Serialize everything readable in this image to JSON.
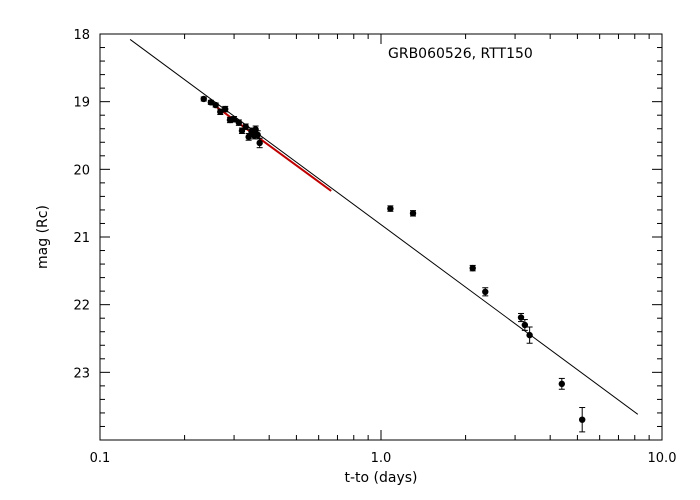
{
  "chart_data": {
    "type": "scatter",
    "title": "GRB060526, RTT150",
    "xlabel": "t-to (days)",
    "ylabel": "mag (Rc)",
    "x_scale": "log",
    "xlim": [
      0.1,
      10.0
    ],
    "ylim": [
      24.0,
      18.0
    ],
    "y_inverted": true,
    "x_ticks": [
      0.1,
      1.0,
      10.0
    ],
    "x_tick_labels": [
      "0.1",
      "1.0",
      "10.0"
    ],
    "y_ticks": [
      18,
      19,
      20,
      21,
      22,
      23
    ],
    "y_tick_labels": [
      "18",
      "19",
      "20",
      "21",
      "22",
      "23"
    ],
    "grid": false,
    "legend": "none",
    "series": [
      {
        "kind": "points",
        "color": "#000000",
        "points": [
          {
            "x": 0.234,
            "y": 18.96,
            "err": 0.03
          },
          {
            "x": 0.248,
            "y": 19.01,
            "err": 0.03
          },
          {
            "x": 0.258,
            "y": 19.05,
            "err": 0.03
          },
          {
            "x": 0.268,
            "y": 19.15,
            "err": 0.04
          },
          {
            "x": 0.279,
            "y": 19.11,
            "err": 0.04
          },
          {
            "x": 0.29,
            "y": 19.27,
            "err": 0.04
          },
          {
            "x": 0.3,
            "y": 19.26,
            "err": 0.04
          },
          {
            "x": 0.312,
            "y": 19.31,
            "err": 0.04
          },
          {
            "x": 0.32,
            "y": 19.43,
            "err": 0.04
          },
          {
            "x": 0.33,
            "y": 19.37,
            "err": 0.04
          },
          {
            "x": 0.338,
            "y": 19.52,
            "err": 0.05
          },
          {
            "x": 0.346,
            "y": 19.44,
            "err": 0.05
          },
          {
            "x": 0.354,
            "y": 19.5,
            "err": 0.05
          },
          {
            "x": 0.358,
            "y": 19.41,
            "err": 0.05
          },
          {
            "x": 0.364,
            "y": 19.49,
            "err": 0.06
          },
          {
            "x": 0.37,
            "y": 19.61,
            "err": 0.07
          },
          {
            "x": 1.08,
            "y": 20.58,
            "err": 0.04
          },
          {
            "x": 1.3,
            "y": 20.65,
            "err": 0.04
          },
          {
            "x": 2.12,
            "y": 21.46,
            "err": 0.04
          },
          {
            "x": 2.35,
            "y": 21.81,
            "err": 0.06
          },
          {
            "x": 3.15,
            "y": 22.19,
            "err": 0.06
          },
          {
            "x": 3.25,
            "y": 22.3,
            "err": 0.08
          },
          {
            "x": 3.38,
            "y": 22.45,
            "err": 0.12
          },
          {
            "x": 4.4,
            "y": 23.17,
            "err": 0.08
          },
          {
            "x": 5.2,
            "y": 23.7,
            "err": 0.18
          }
        ]
      },
      {
        "kind": "line",
        "color": "#000000",
        "points": [
          {
            "x": 0.128,
            "y": 18.08
          },
          {
            "x": 8.2,
            "y": 23.62
          }
        ]
      },
      {
        "kind": "line",
        "color": "#c00000",
        "points": [
          {
            "x": 0.245,
            "y": 19.0
          },
          {
            "x": 0.665,
            "y": 20.32
          }
        ]
      }
    ]
  }
}
